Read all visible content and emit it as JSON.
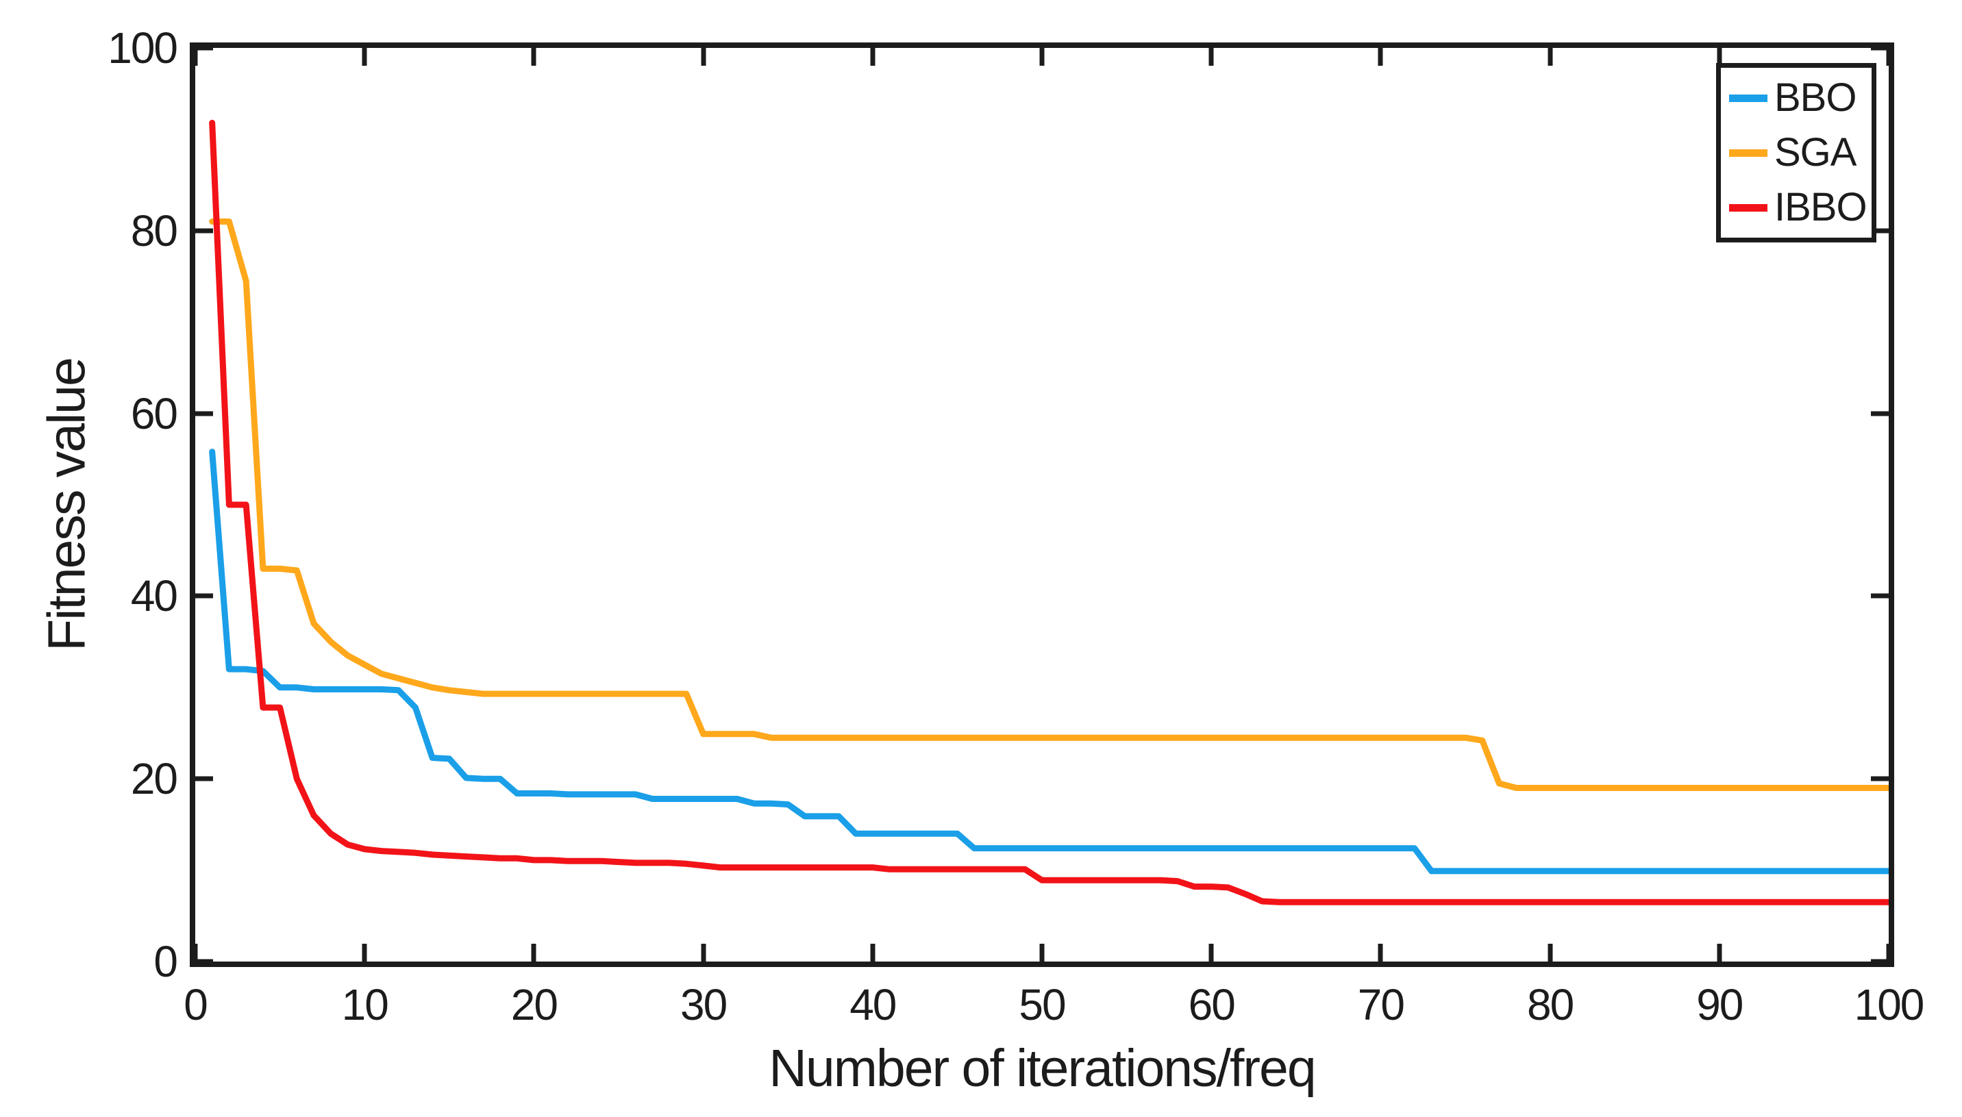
{
  "chart_data": {
    "type": "line",
    "title": "",
    "xlabel": "Number of iterations/freq",
    "ylabel": "Fitness value",
    "xlim": [
      0,
      100
    ],
    "ylim": [
      0,
      100
    ],
    "x_ticks": [
      0,
      10,
      20,
      30,
      40,
      50,
      60,
      70,
      80,
      90,
      100
    ],
    "y_ticks": [
      0,
      20,
      40,
      60,
      80,
      100
    ],
    "grid": false,
    "legend_position": "top-right",
    "x_start": 1,
    "styles": {
      "line_width": 9,
      "axis_color": "#1c1c1c",
      "background": "#ffffff"
    },
    "series": [
      {
        "name": "BBO",
        "color": "#1A9FE8",
        "values": [
          55.8,
          32,
          32,
          31.8,
          30,
          30,
          29.8,
          29.8,
          29.8,
          29.8,
          29.8,
          29.7,
          27.8,
          22.3,
          22.2,
          20.1,
          20,
          20,
          18.4,
          18.4,
          18.4,
          18.3,
          18.3,
          18.3,
          18.3,
          18.3,
          17.8,
          17.8,
          17.8,
          17.8,
          17.8,
          17.8,
          17.3,
          17.3,
          17.2,
          15.9,
          15.9,
          15.9,
          14,
          14,
          14,
          14,
          14,
          14,
          14,
          12.4,
          12.4,
          12.4,
          12.4,
          12.4,
          12.4,
          12.4,
          12.4,
          12.4,
          12.4,
          12.4,
          12.4,
          12.4,
          12.4,
          12.4,
          12.4,
          12.4,
          12.4,
          12.4,
          12.4,
          12.4,
          12.4,
          12.4,
          12.4,
          12.4,
          12.4,
          12.4,
          9.9,
          9.9,
          9.9,
          9.9,
          9.9,
          9.9,
          9.9,
          9.9,
          9.9,
          9.9,
          9.9,
          9.9,
          9.9,
          9.9,
          9.9,
          9.9,
          9.9,
          9.9,
          9.9,
          9.9,
          9.9,
          9.9,
          9.9,
          9.9,
          9.9,
          9.9,
          9.9,
          9.9
        ]
      },
      {
        "name": "SGA",
        "color": "#FFA81C",
        "values": [
          81,
          81,
          74.5,
          43,
          43,
          42.8,
          37,
          35,
          33.5,
          32.5,
          31.5,
          31,
          30.5,
          30,
          29.7,
          29.5,
          29.3,
          29.3,
          29.3,
          29.3,
          29.3,
          29.3,
          29.3,
          29.3,
          29.3,
          29.3,
          29.3,
          29.3,
          29.3,
          24.9,
          24.9,
          24.9,
          24.9,
          24.5,
          24.5,
          24.5,
          24.5,
          24.5,
          24.5,
          24.5,
          24.5,
          24.5,
          24.5,
          24.5,
          24.5,
          24.5,
          24.5,
          24.5,
          24.5,
          24.5,
          24.5,
          24.5,
          24.5,
          24.5,
          24.5,
          24.5,
          24.5,
          24.5,
          24.5,
          24.5,
          24.5,
          24.5,
          24.5,
          24.5,
          24.5,
          24.5,
          24.5,
          24.5,
          24.5,
          24.5,
          24.5,
          24.5,
          24.5,
          24.5,
          24.5,
          24.2,
          19.5,
          19,
          19,
          19,
          19,
          19,
          19,
          19,
          19,
          19,
          19,
          19,
          19,
          19,
          19,
          19,
          19,
          19,
          19,
          19,
          19,
          19,
          19,
          19
        ]
      },
      {
        "name": "IBBO",
        "color": "#F21318",
        "values": [
          91.8,
          50,
          50,
          27.8,
          27.8,
          20,
          16,
          14,
          12.8,
          12.3,
          12.1,
          12,
          11.9,
          11.7,
          11.6,
          11.5,
          11.4,
          11.3,
          11.3,
          11.1,
          11.1,
          11,
          11,
          11,
          10.9,
          10.8,
          10.8,
          10.8,
          10.7,
          10.5,
          10.3,
          10.3,
          10.3,
          10.3,
          10.3,
          10.3,
          10.3,
          10.3,
          10.3,
          10.3,
          10.1,
          10.1,
          10.1,
          10.1,
          10.1,
          10.1,
          10.1,
          10.1,
          10.1,
          8.9,
          8.9,
          8.9,
          8.9,
          8.9,
          8.9,
          8.9,
          8.9,
          8.8,
          8.2,
          8.2,
          8.1,
          7.4,
          6.6,
          6.5,
          6.5,
          6.5,
          6.5,
          6.5,
          6.5,
          6.5,
          6.5,
          6.5,
          6.5,
          6.5,
          6.5,
          6.5,
          6.5,
          6.5,
          6.5,
          6.5,
          6.5,
          6.5,
          6.5,
          6.5,
          6.5,
          6.5,
          6.5,
          6.5,
          6.5,
          6.5,
          6.5,
          6.5,
          6.5,
          6.5,
          6.5,
          6.5,
          6.5,
          6.5,
          6.5,
          6.5
        ]
      }
    ]
  }
}
